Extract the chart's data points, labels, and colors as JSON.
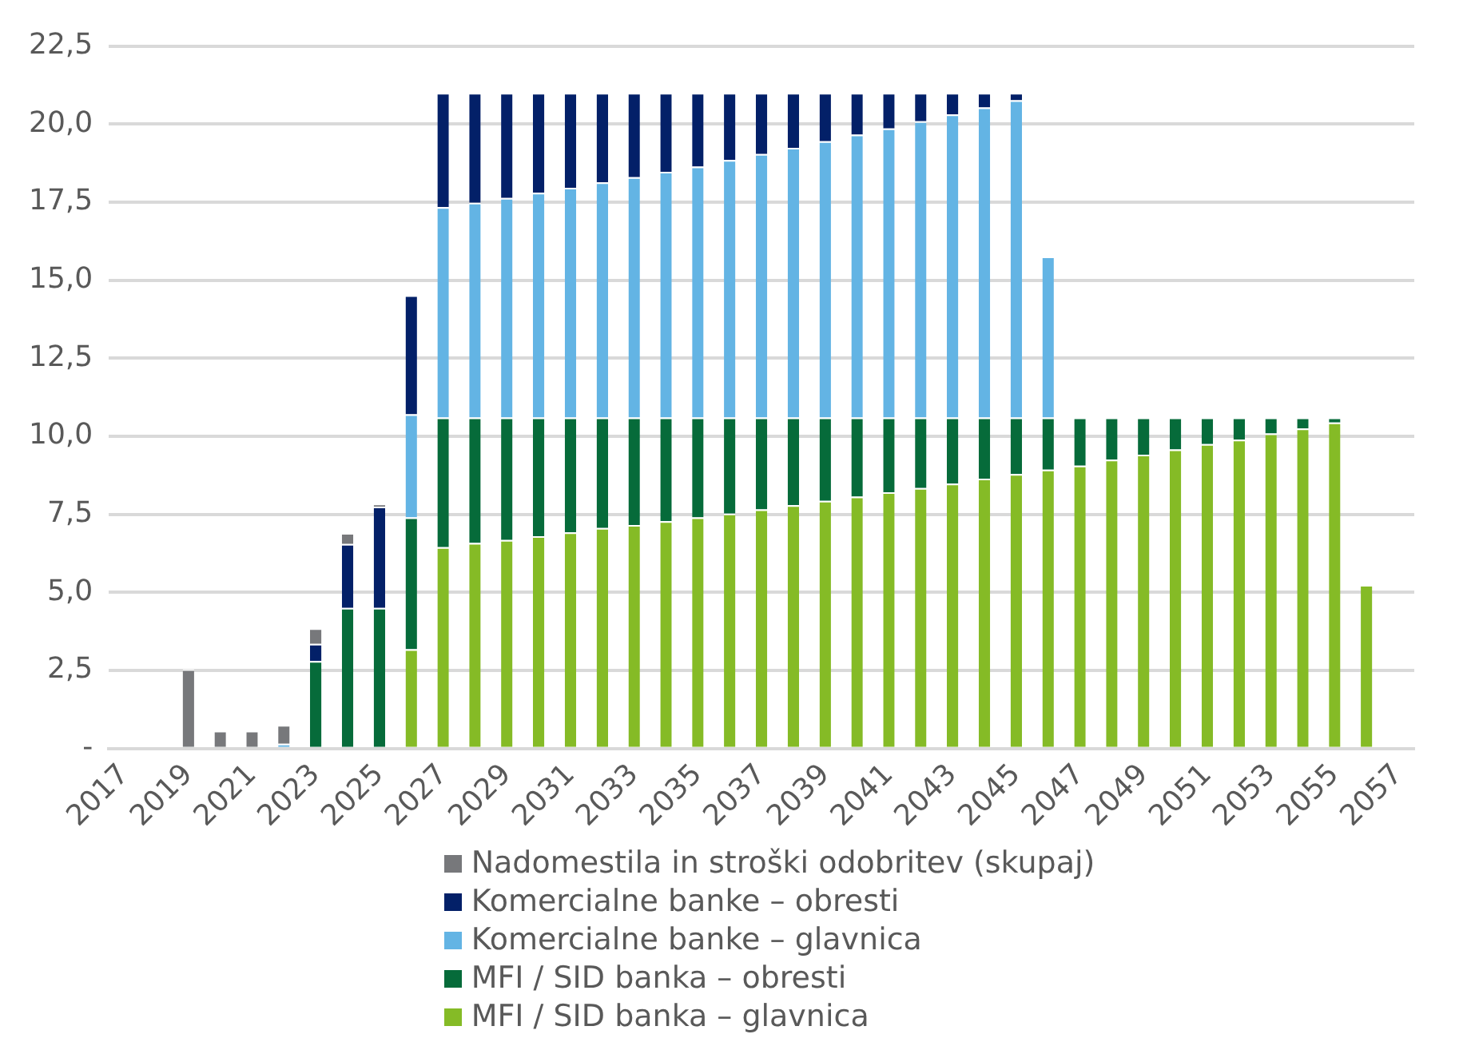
{
  "chart_data": {
    "type": "bar",
    "stacked": true,
    "categories": [
      "2017",
      null,
      "2019",
      null,
      "2021",
      null,
      "2023",
      null,
      "2025",
      null,
      "2027",
      null,
      "2029",
      null,
      "2031",
      null,
      "2033",
      null,
      "2035",
      null,
      "2037",
      null,
      "2039",
      null,
      "2041",
      null,
      "2043",
      null,
      "2045",
      null,
      "2047",
      null,
      "2049",
      null,
      "2051",
      null,
      "2053",
      null,
      "2055",
      null,
      "2057"
    ],
    "series": [
      {
        "name": "MFI / SID banka – glavnica",
        "color": "#85bb26",
        "values": [
          null,
          null,
          null,
          null,
          null,
          null,
          null,
          null,
          null,
          3.18,
          6.45,
          6.58,
          6.68,
          6.8,
          6.92,
          7.06,
          7.16,
          7.28,
          7.4,
          7.52,
          7.66,
          7.79,
          7.93,
          8.07,
          8.21,
          8.34,
          8.48,
          8.64,
          8.79,
          8.93,
          9.06,
          9.25,
          9.41,
          9.58,
          9.75,
          9.89,
          10.09,
          10.25,
          10.44,
          5.24,
          null
        ]
      },
      {
        "name": "MFI / SID banka – obresti",
        "color": "#066b3a",
        "values": [
          null,
          null,
          null,
          null,
          null,
          null,
          2.8,
          4.5,
          4.5,
          4.22,
          4.15,
          4.02,
          3.92,
          3.8,
          3.68,
          3.54,
          3.44,
          3.32,
          3.2,
          3.08,
          2.94,
          2.81,
          2.67,
          2.53,
          2.39,
          2.26,
          2.12,
          1.96,
          1.81,
          1.67,
          1.54,
          1.35,
          1.19,
          1.02,
          0.85,
          0.71,
          0.51,
          0.35,
          0.16,
          null,
          null
        ]
      },
      {
        "name": "Komercialne banke – glavnica",
        "color": "#63b4e4",
        "values": [
          null,
          null,
          null,
          null,
          null,
          0.15,
          null,
          null,
          null,
          3.3,
          6.74,
          6.88,
          7.03,
          7.2,
          7.36,
          7.53,
          7.7,
          7.87,
          8.04,
          8.25,
          8.44,
          8.64,
          8.85,
          9.06,
          9.26,
          9.49,
          9.71,
          9.93,
          10.16,
          5.16,
          null,
          null,
          null,
          null,
          null,
          null,
          null,
          null,
          null,
          null,
          null
        ]
      },
      {
        "name": "Komercialne banke – obresti",
        "color": "#032068",
        "values": [
          null,
          null,
          null,
          null,
          null,
          null,
          0.55,
          2.05,
          3.25,
          3.82,
          3.66,
          3.52,
          3.37,
          3.2,
          3.04,
          2.87,
          2.7,
          2.53,
          2.36,
          2.15,
          1.96,
          1.76,
          1.55,
          1.34,
          1.14,
          0.91,
          0.69,
          0.47,
          0.24,
          null,
          null,
          null,
          null,
          null,
          null,
          null,
          null,
          null,
          null,
          null,
          null
        ]
      },
      {
        "name": "Nadomestila in stroški odobritev (skupaj)",
        "color": "#77787b",
        "values": [
          null,
          null,
          2.54,
          0.57,
          0.57,
          0.6,
          0.5,
          0.35,
          0.08,
          null,
          null,
          null,
          null,
          null,
          null,
          null,
          null,
          null,
          null,
          null,
          null,
          null,
          null,
          null,
          null,
          null,
          null,
          null,
          null,
          null,
          null,
          null,
          null,
          null,
          null,
          null,
          null,
          null,
          null,
          null,
          null
        ]
      }
    ],
    "ylim": [
      0,
      22.5
    ],
    "yticks": [
      {
        "value": 0,
        "label": "-"
      },
      {
        "value": 2.5,
        "label": "2,5"
      },
      {
        "value": 5,
        "label": "5,0"
      },
      {
        "value": 7.5,
        "label": "7,5"
      },
      {
        "value": 10,
        "label": "10,0"
      },
      {
        "value": 12.5,
        "label": "12,5"
      },
      {
        "value": 15,
        "label": "15,0"
      },
      {
        "value": 17.5,
        "label": "17,5"
      },
      {
        "value": 20,
        "label": "20,0"
      },
      {
        "value": 22.5,
        "label": "22,5"
      }
    ],
    "grid": "y",
    "legend": "bottom"
  }
}
